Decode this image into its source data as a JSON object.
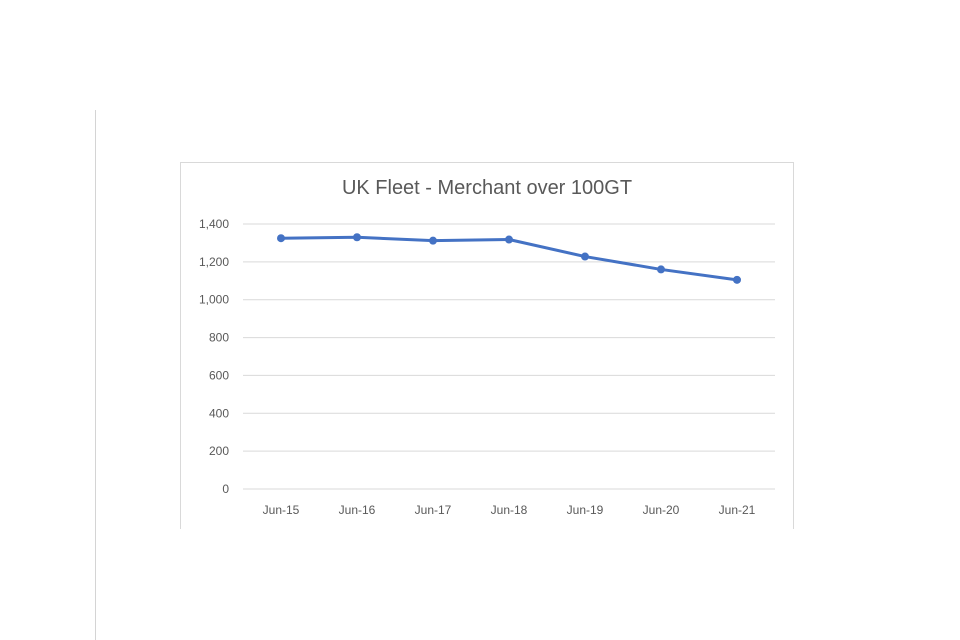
{
  "chart_data": {
    "type": "line",
    "title": "UK Fleet - Merchant over 100GT",
    "xlabel": "",
    "ylabel": "",
    "categories": [
      "Jun-15",
      "Jun-16",
      "Jun-17",
      "Jun-18",
      "Jun-19",
      "Jun-20",
      "Jun-21"
    ],
    "series": [
      {
        "values": [
          1325,
          1330,
          1312,
          1318,
          1228,
          1160,
          1105
        ],
        "color": "#4472c4"
      }
    ],
    "ylim": [
      0,
      1400
    ],
    "yticks": [
      0,
      200,
      400,
      600,
      800,
      1000,
      1200,
      1400
    ],
    "ytick_labels": [
      "0",
      "200",
      "400",
      "600",
      "800",
      "1,000",
      "1,200",
      "1,400"
    ],
    "grid": true,
    "legend": "none",
    "colors": {
      "line": "#4472c4",
      "grid": "#d9d9d9",
      "text": "#595959"
    }
  }
}
